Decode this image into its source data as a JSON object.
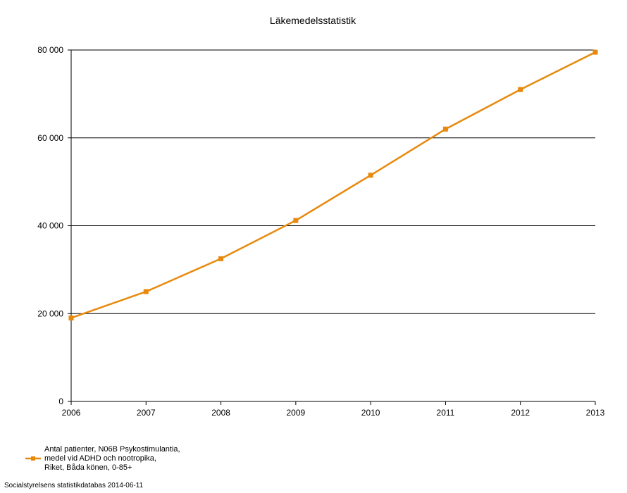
{
  "chart_data": {
    "type": "line",
    "title": "Läkemedelsstatistik",
    "xlabel": "",
    "ylabel": "",
    "x": [
      "2006",
      "2007",
      "2008",
      "2009",
      "2010",
      "2011",
      "2012",
      "2013"
    ],
    "ylim": [
      0,
      80000
    ],
    "y_ticks": [
      {
        "value": 0,
        "label": "0"
      },
      {
        "value": 20000,
        "label": "20 000"
      },
      {
        "value": 40000,
        "label": "40 000"
      },
      {
        "value": 60000,
        "label": "60 000"
      },
      {
        "value": 80000,
        "label": "80 000"
      }
    ],
    "grid": true,
    "legend_position": "bottom-left",
    "series": [
      {
        "name": "Antal patienter, N06B Psykostimulantia, medel vid ADHD och nootropika, Riket, Båda könen, 0-85+",
        "legend_lines": [
          "Antal patienter, N06B Psykostimulantia,",
          "medel vid ADHD och nootropika,",
          "Riket, Båda könen, 0-85+"
        ],
        "color": "#e8890c",
        "values": [
          19000,
          25000,
          32500,
          41200,
          51500,
          62000,
          71000,
          79500
        ]
      }
    ]
  },
  "source": "Socialstyrelsens statistikdatabas 2014-06-11"
}
